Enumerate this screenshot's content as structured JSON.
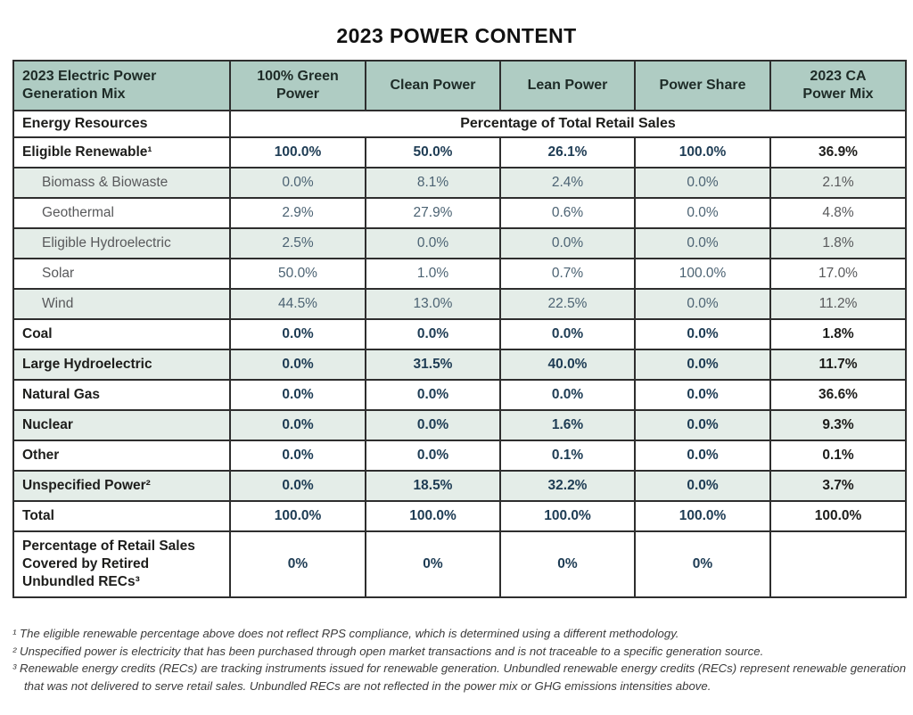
{
  "title": "2023 POWER CONTENT",
  "table": {
    "header": [
      "2023 Electric Power Generation Mix",
      "100% Green Power",
      "Clean Power",
      "Lean Power",
      "Power Share",
      "2023 CA Power Mix"
    ],
    "subheader": {
      "label": "Energy Resources",
      "span_label": "Percentage of Total Retail Sales"
    },
    "rows": [
      {
        "label": "Eligible Renewable¹",
        "type": "main",
        "shaded": false,
        "values": [
          "100.0%",
          "50.0%",
          "26.1%",
          "100.0%",
          "36.9%"
        ]
      },
      {
        "label": "Biomass & Biowaste",
        "type": "sub",
        "shaded": true,
        "values": [
          "0.0%",
          "8.1%",
          "2.4%",
          "0.0%",
          "2.1%"
        ]
      },
      {
        "label": "Geothermal",
        "type": "sub",
        "shaded": false,
        "values": [
          "2.9%",
          "27.9%",
          "0.6%",
          "0.0%",
          "4.8%"
        ]
      },
      {
        "label": "Eligible Hydroelectric",
        "type": "sub",
        "shaded": true,
        "values": [
          "2.5%",
          "0.0%",
          "0.0%",
          "0.0%",
          "1.8%"
        ]
      },
      {
        "label": "Solar",
        "type": "sub",
        "shaded": false,
        "values": [
          "50.0%",
          "1.0%",
          "0.7%",
          "100.0%",
          "17.0%"
        ]
      },
      {
        "label": "Wind",
        "type": "sub",
        "shaded": true,
        "values": [
          "44.5%",
          "13.0%",
          "22.5%",
          "0.0%",
          "11.2%"
        ]
      },
      {
        "label": "Coal",
        "type": "main",
        "shaded": false,
        "values": [
          "0.0%",
          "0.0%",
          "0.0%",
          "0.0%",
          "1.8%"
        ]
      },
      {
        "label": "Large Hydroelectric",
        "type": "main",
        "shaded": true,
        "values": [
          "0.0%",
          "31.5%",
          "40.0%",
          "0.0%",
          "11.7%"
        ]
      },
      {
        "label": "Natural Gas",
        "type": "main",
        "shaded": false,
        "values": [
          "0.0%",
          "0.0%",
          "0.0%",
          "0.0%",
          "36.6%"
        ]
      },
      {
        "label": "Nuclear",
        "type": "main",
        "shaded": true,
        "values": [
          "0.0%",
          "0.0%",
          "1.6%",
          "0.0%",
          "9.3%"
        ]
      },
      {
        "label": "Other",
        "type": "main",
        "shaded": false,
        "values": [
          "0.0%",
          "0.0%",
          "0.1%",
          "0.0%",
          "0.1%"
        ]
      },
      {
        "label": "Unspecified Power²",
        "type": "main",
        "shaded": true,
        "values": [
          "0.0%",
          "18.5%",
          "32.2%",
          "0.0%",
          "3.7%"
        ]
      },
      {
        "label": "Total",
        "type": "main",
        "shaded": false,
        "values": [
          "100.0%",
          "100.0%",
          "100.0%",
          "100.0%",
          "100.0%"
        ]
      },
      {
        "label": "Percentage of Retail Sales Covered by Retired Unbundled RECs³",
        "type": "recs",
        "shaded": false,
        "values": [
          "0%",
          "0%",
          "0%",
          "0%",
          ""
        ]
      }
    ]
  },
  "footnotes": [
    "¹ The eligible renewable percentage above does not reflect RPS compliance, which is determined using a different methodology.",
    "² Unspecified power is electricity that has been purchased through open market transactions and is not traceable to a specific generation source.",
    "³ Renewable energy credits (RECs) are tracking instruments issued for renewable generation. Unbundled renewable energy credits (RECs) represent renewable generation that was not delivered to serve retail sales. Unbundled RECs are not reflected in the power mix or GHG emissions intensities above."
  ],
  "colors": {
    "header_bg": "#afccc3",
    "shaded_bg": "#e4ede8",
    "border": "#2e2e2e",
    "navy": "#1e3c54",
    "black": "#1d1d1b",
    "gray": "#58595b",
    "sub_value": "#4c6373",
    "page_bg": "#ffffff"
  }
}
